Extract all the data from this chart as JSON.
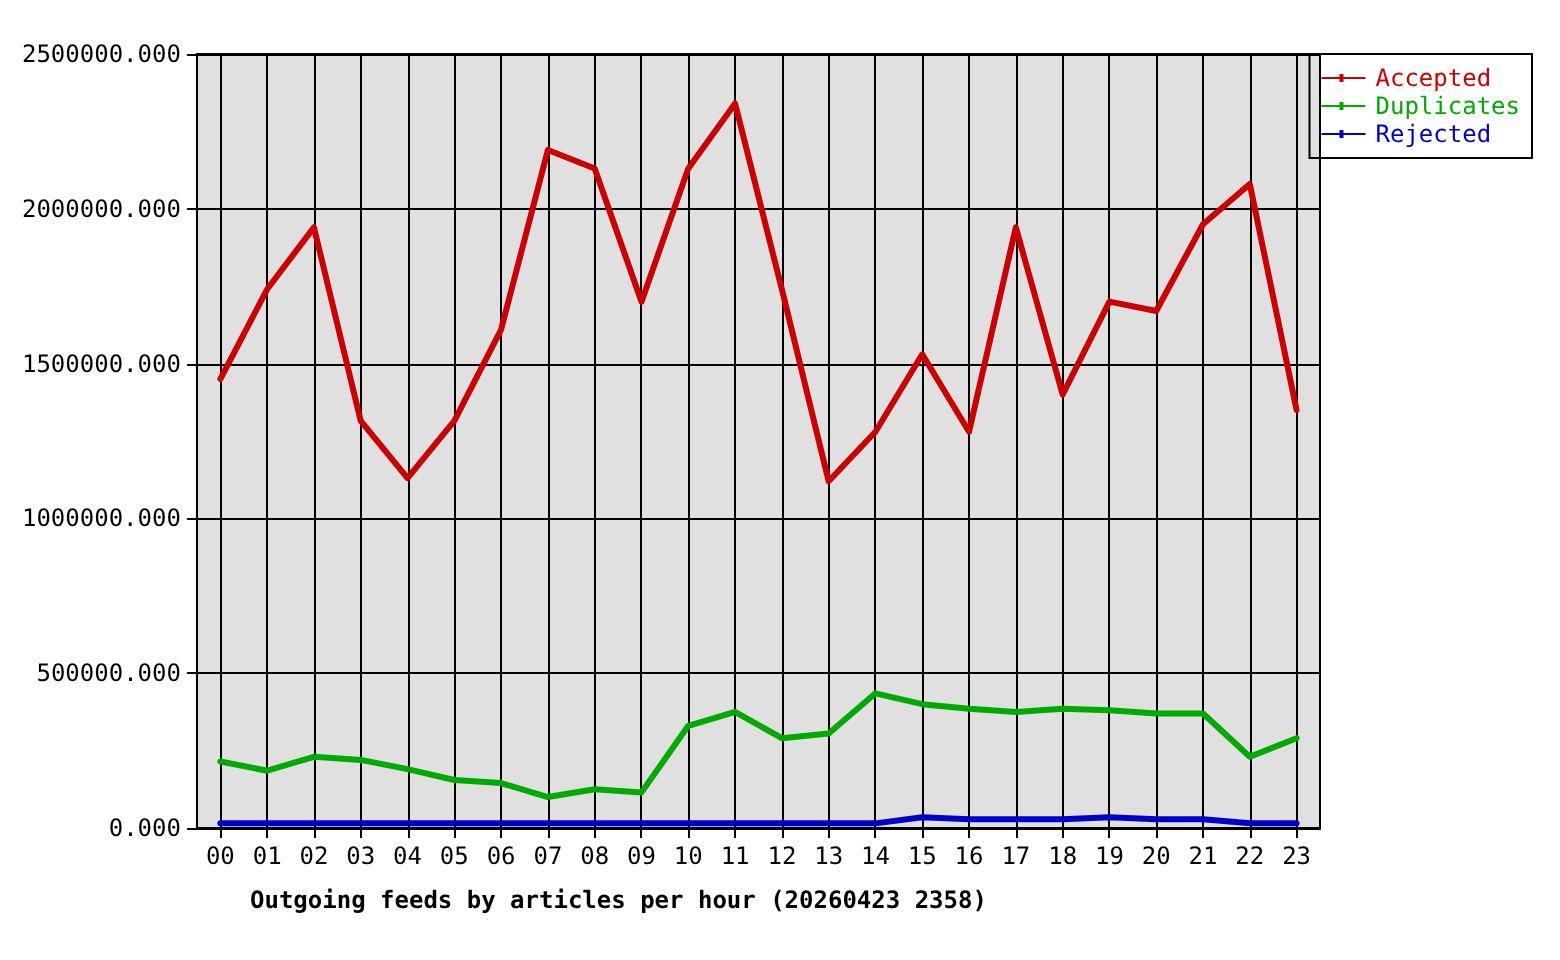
{
  "chart_data": {
    "type": "line",
    "xlabel": "Outgoing feeds by articles per hour (20260423 2358)",
    "categories": [
      "00",
      "01",
      "02",
      "03",
      "04",
      "05",
      "06",
      "07",
      "08",
      "09",
      "10",
      "11",
      "12",
      "13",
      "14",
      "15",
      "16",
      "17",
      "18",
      "19",
      "20",
      "21",
      "22",
      "23"
    ],
    "series": [
      {
        "name": "Accepted",
        "color": "#cc0000",
        "values": [
          1450000,
          1740000,
          1940000,
          1315000,
          1130000,
          1315000,
          1610000,
          2190000,
          2130000,
          1700000,
          2130000,
          2340000,
          1740000,
          1120000,
          1280000,
          1530000,
          1280000,
          1940000,
          1400000,
          1700000,
          1670000,
          1950000,
          2080000,
          1350000
        ]
      },
      {
        "name": "Duplicates",
        "color": "#00aa00",
        "values": [
          215000,
          185000,
          230000,
          220000,
          190000,
          155000,
          145000,
          100000,
          125000,
          115000,
          330000,
          375000,
          290000,
          305000,
          435000,
          400000,
          385000,
          375000,
          385000,
          380000,
          370000,
          370000,
          230000,
          290000
        ]
      },
      {
        "name": "Rejected",
        "color": "#0000cc",
        "values": [
          15000,
          15000,
          15000,
          15000,
          15000,
          15000,
          15000,
          15000,
          15000,
          15000,
          15000,
          15000,
          15000,
          15000,
          15000,
          35000,
          28000,
          28000,
          28000,
          35000,
          28000,
          28000,
          15000,
          15000
        ]
      }
    ],
    "ylim": [
      0,
      2500000
    ],
    "yticks": [
      {
        "value": 0,
        "label": "0.000"
      },
      {
        "value": 500000,
        "label": "500000.000"
      },
      {
        "value": 1000000,
        "label": "1000000.000"
      },
      {
        "value": 1500000,
        "label": "1500000.000"
      },
      {
        "value": 2000000,
        "label": "2000000.000"
      },
      {
        "value": 2500000,
        "label": "2500000.000"
      }
    ],
    "grid": true,
    "legend": "top right",
    "line_style": "solid"
  }
}
